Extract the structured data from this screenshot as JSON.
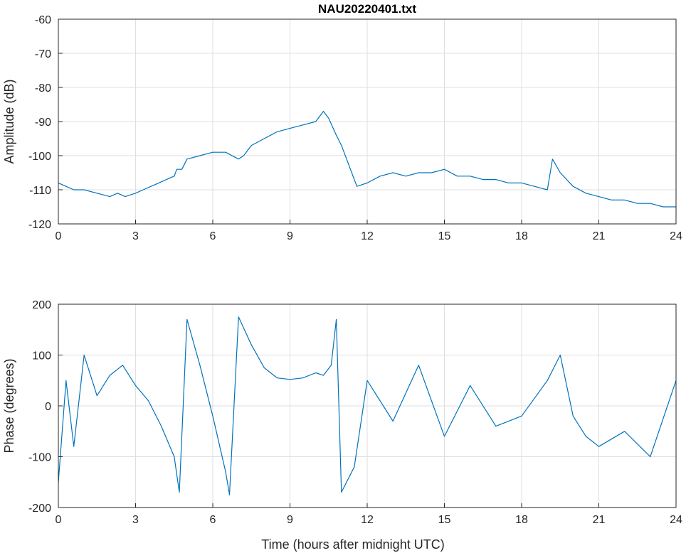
{
  "chart_data": [
    {
      "type": "line",
      "title": "NAU20220401.txt",
      "xlabel": "",
      "ylabel": "Amplitude (dB)",
      "xlim": [
        0,
        24
      ],
      "ylim": [
        -120,
        -60
      ],
      "xticks": [
        "0",
        "3",
        "6",
        "9",
        "12",
        "15",
        "18",
        "21",
        "24"
      ],
      "yticks": [
        "-60",
        "-70",
        "-80",
        "-90",
        "-100",
        "-110",
        "-120"
      ],
      "grid": true,
      "color": "#0072BD",
      "series": [
        {
          "x": [
            0,
            0.3,
            0.6,
            1.0,
            1.5,
            2.0,
            2.3,
            2.6,
            3.0,
            3.3,
            3.6,
            3.9,
            4.2,
            4.5,
            4.6,
            4.8,
            5.0,
            5.5,
            6.0,
            6.5,
            7.0,
            7.2,
            7.5,
            8.0,
            8.5,
            9.0,
            9.5,
            10.0,
            10.3,
            10.5,
            10.8,
            11.0,
            11.3,
            11.6,
            12.0,
            12.5,
            13.0,
            13.5,
            14.0,
            14.5,
            15.0,
            15.5,
            16.0,
            16.5,
            17.0,
            17.5,
            18.0,
            18.5,
            19.0,
            19.2,
            19.5,
            20.0,
            20.5,
            21.0,
            21.5,
            22.0,
            22.5,
            23.0,
            23.5,
            24.0
          ],
          "y": [
            -108,
            -109,
            -110,
            -110,
            -111,
            -112,
            -111,
            -112,
            -111,
            -110,
            -109,
            -108,
            -107,
            -106,
            -104,
            -104,
            -101,
            -100,
            -99,
            -99,
            -101,
            -100,
            -97,
            -95,
            -93,
            -92,
            -91,
            -90,
            -87,
            -89,
            -94,
            -97,
            -103,
            -109,
            -108,
            -106,
            -105,
            -106,
            -105,
            -105,
            -104,
            -106,
            -106,
            -107,
            -107,
            -108,
            -108,
            -109,
            -110,
            -101,
            -105,
            -109,
            -111,
            -112,
            -113,
            -113,
            -114,
            -114,
            -115,
            -115
          ]
        }
      ]
    },
    {
      "type": "line",
      "title": "",
      "xlabel": "Time (hours after midnight UTC)",
      "ylabel": "Phase (degrees)",
      "xlim": [
        0,
        24
      ],
      "ylim": [
        -200,
        200
      ],
      "xticks": [
        "0",
        "3",
        "6",
        "9",
        "12",
        "15",
        "18",
        "21",
        "24"
      ],
      "yticks": [
        "200",
        "100",
        "0",
        "-100",
        "-200"
      ],
      "grid": true,
      "color": "#0072BD",
      "series": [
        {
          "x": [
            0,
            0.3,
            0.6,
            1.0,
            1.5,
            2.0,
            2.5,
            3.0,
            3.5,
            4.0,
            4.5,
            4.7,
            5.0,
            5.5,
            6.0,
            6.5,
            6.65,
            7.0,
            7.5,
            8.0,
            8.5,
            9.0,
            9.5,
            10.0,
            10.3,
            10.6,
            10.8,
            11.0,
            11.5,
            12.0,
            13.0,
            14.0,
            15.0,
            16.0,
            17.0,
            18.0,
            19.0,
            19.5,
            20.0,
            20.5,
            21.0,
            22.0,
            23.0,
            24.0
          ],
          "y": [
            -150,
            50,
            -80,
            100,
            20,
            60,
            80,
            40,
            10,
            -40,
            -100,
            -170,
            170,
            80,
            -20,
            -130,
            -175,
            175,
            120,
            75,
            55,
            52,
            55,
            65,
            60,
            80,
            170,
            -170,
            -120,
            50,
            -30,
            80,
            -60,
            40,
            -40,
            -20,
            50,
            100,
            -20,
            -60,
            -80,
            -50,
            -100,
            50
          ]
        }
      ]
    }
  ]
}
